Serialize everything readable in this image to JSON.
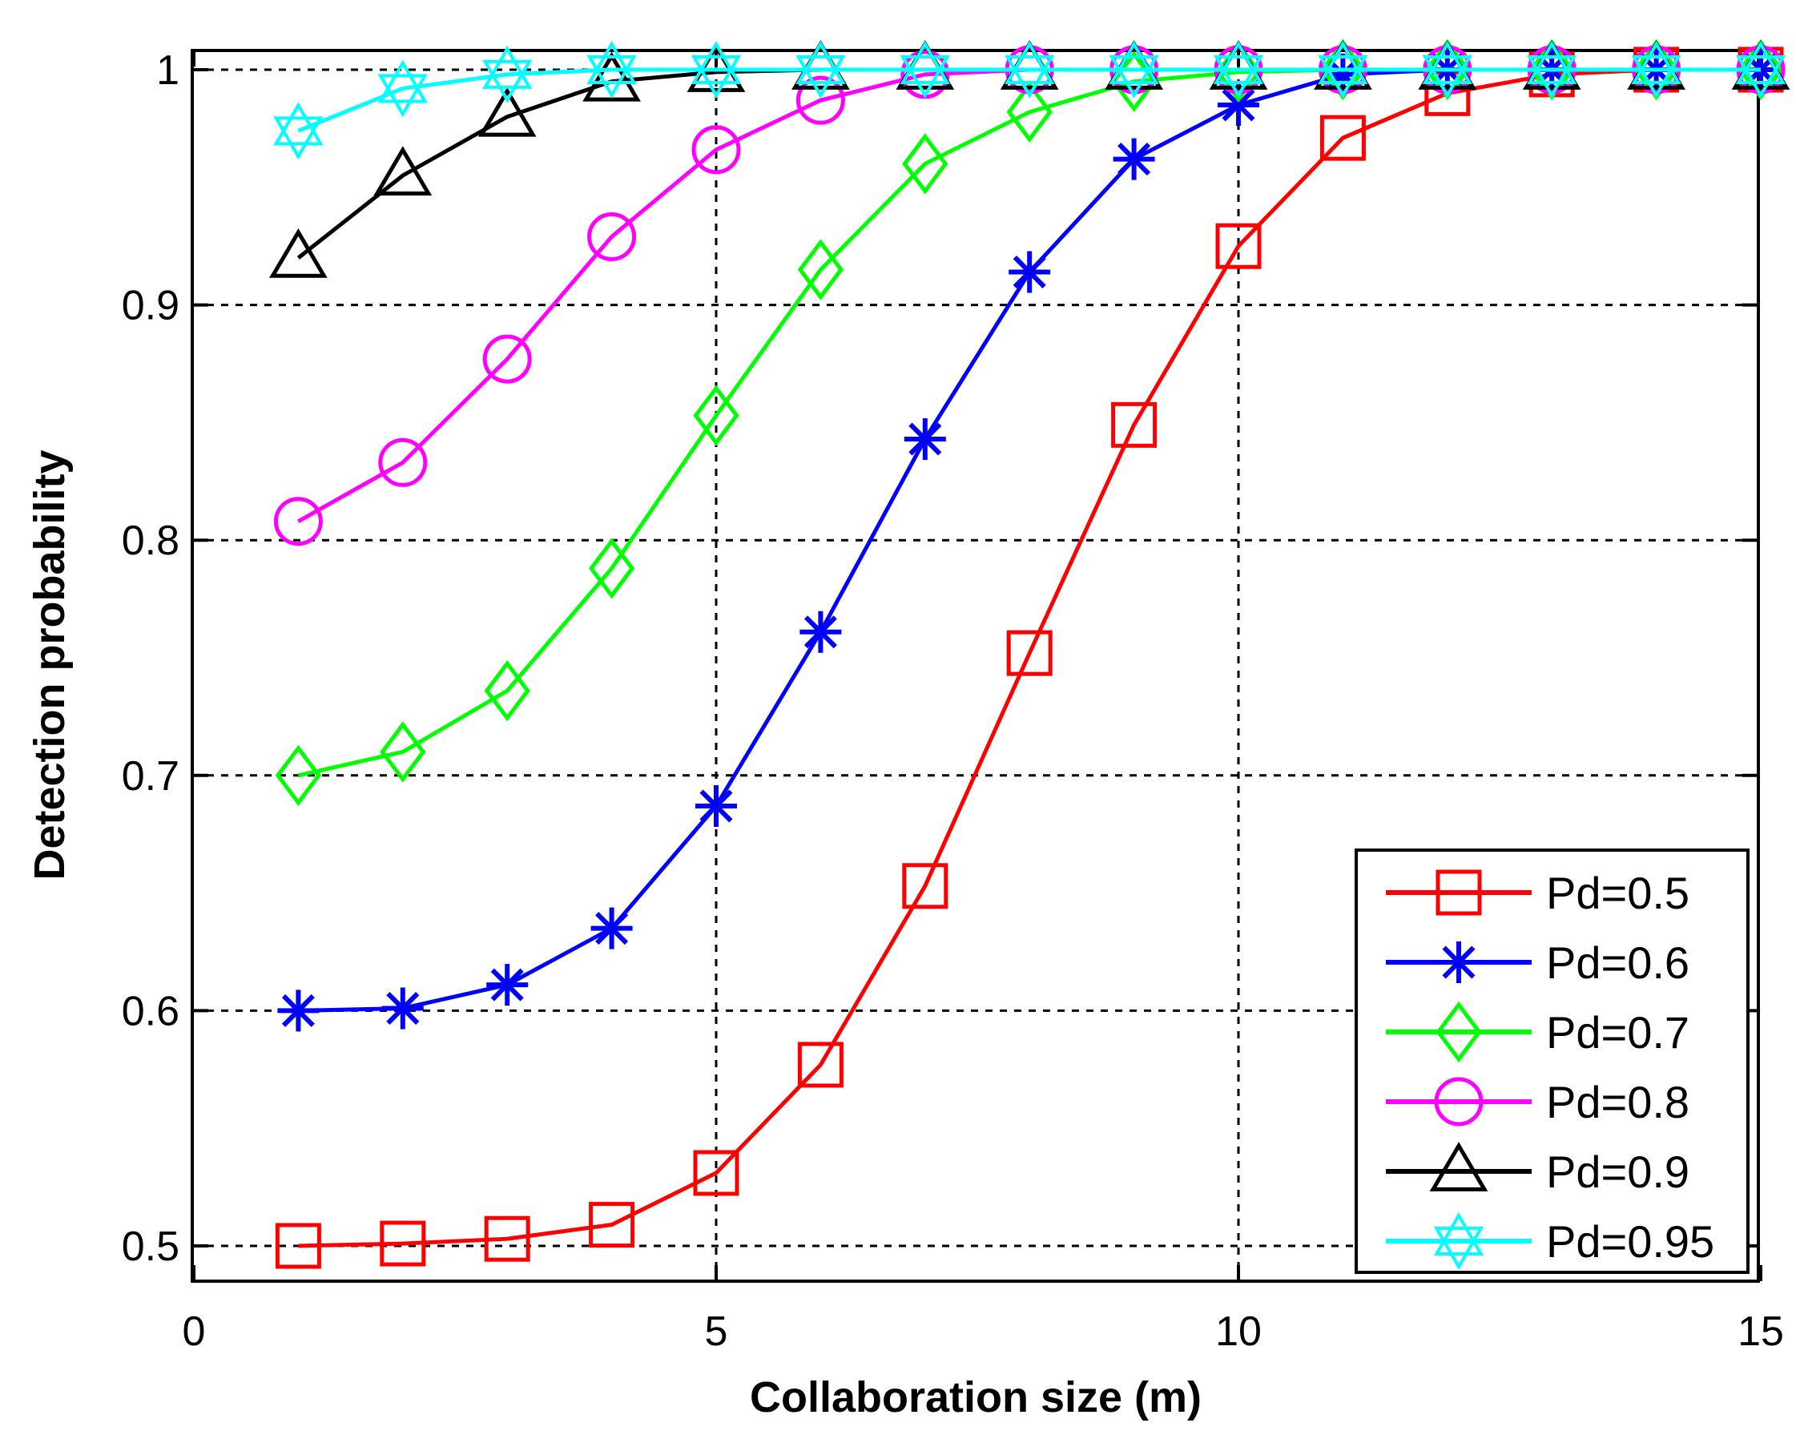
{
  "chart_data": {
    "type": "line",
    "xlabel": "Collaboration size (m)",
    "ylabel": "Detection probability",
    "xlim": [
      0,
      15
    ],
    "ylim": [
      0.48,
      1.01
    ],
    "xticks": [
      0,
      5,
      10,
      15
    ],
    "yticks": [
      0.5,
      0.6,
      0.7,
      0.8,
      0.9,
      1
    ],
    "xtick_labels": [
      "0",
      "5",
      "10",
      "15"
    ],
    "ytick_labels": [
      "0.5",
      "0.6",
      "0.7",
      "0.8",
      "0.9",
      "1"
    ],
    "grid": true,
    "legend_position": "bottom-right",
    "series": [
      {
        "name": "Pd=0.5",
        "color": "#ff0000",
        "marker": "square",
        "x": [
          1,
          2,
          3,
          4,
          5,
          6,
          7,
          8,
          9,
          10,
          11,
          12,
          13,
          14,
          15
        ],
        "y": [
          0.5,
          0.501,
          0.503,
          0.509,
          0.531,
          0.577,
          0.653,
          0.752,
          0.849,
          0.925,
          0.971,
          0.99,
          0.998,
          1.0,
          1.0
        ]
      },
      {
        "name": "Pd=0.6",
        "color": "#0000ff",
        "marker": "asterisk",
        "x": [
          1,
          2,
          3,
          4,
          5,
          6,
          7,
          8,
          9,
          10,
          11,
          12,
          13,
          14,
          15
        ],
        "y": [
          0.6,
          0.601,
          0.611,
          0.635,
          0.687,
          0.761,
          0.843,
          0.914,
          0.962,
          0.985,
          0.998,
          1.0,
          1.0,
          1.0,
          1.0
        ]
      },
      {
        "name": "Pd=0.7",
        "color": "#00ff00",
        "marker": "diamond",
        "x": [
          1,
          2,
          3,
          4,
          5,
          6,
          7,
          8,
          9,
          10,
          11,
          12,
          13,
          14,
          15
        ],
        "y": [
          0.7,
          0.71,
          0.736,
          0.788,
          0.853,
          0.915,
          0.96,
          0.982,
          0.995,
          0.999,
          1.0,
          1.0,
          1.0,
          1.0,
          1.0
        ]
      },
      {
        "name": "Pd=0.8",
        "color": "#ff00ff",
        "marker": "circle",
        "x": [
          1,
          2,
          3,
          4,
          5,
          6,
          7,
          8,
          9,
          10,
          11,
          12,
          13,
          14,
          15
        ],
        "y": [
          0.808,
          0.833,
          0.877,
          0.929,
          0.966,
          0.987,
          0.998,
          1.0,
          1.0,
          1.0,
          1.0,
          1.0,
          1.0,
          1.0,
          1.0
        ]
      },
      {
        "name": "Pd=0.9",
        "color": "#000000",
        "marker": "triangle",
        "x": [
          1,
          2,
          3,
          4,
          5,
          6,
          7,
          8,
          9,
          10,
          11,
          12,
          13,
          14,
          15
        ],
        "y": [
          0.92,
          0.955,
          0.98,
          0.995,
          0.999,
          1.0,
          1.0,
          1.0,
          1.0,
          1.0,
          1.0,
          1.0,
          1.0,
          1.0,
          1.0
        ]
      },
      {
        "name": "Pd=0.95",
        "color": "#00ffff",
        "marker": "hexagram",
        "x": [
          1,
          2,
          3,
          4,
          5,
          6,
          7,
          8,
          9,
          10,
          11,
          12,
          13,
          14,
          15
        ],
        "y": [
          0.974,
          0.992,
          0.998,
          1.0,
          1.0,
          1.0,
          1.0,
          1.0,
          1.0,
          1.0,
          1.0,
          1.0,
          1.0,
          1.0,
          1.0
        ]
      }
    ]
  }
}
